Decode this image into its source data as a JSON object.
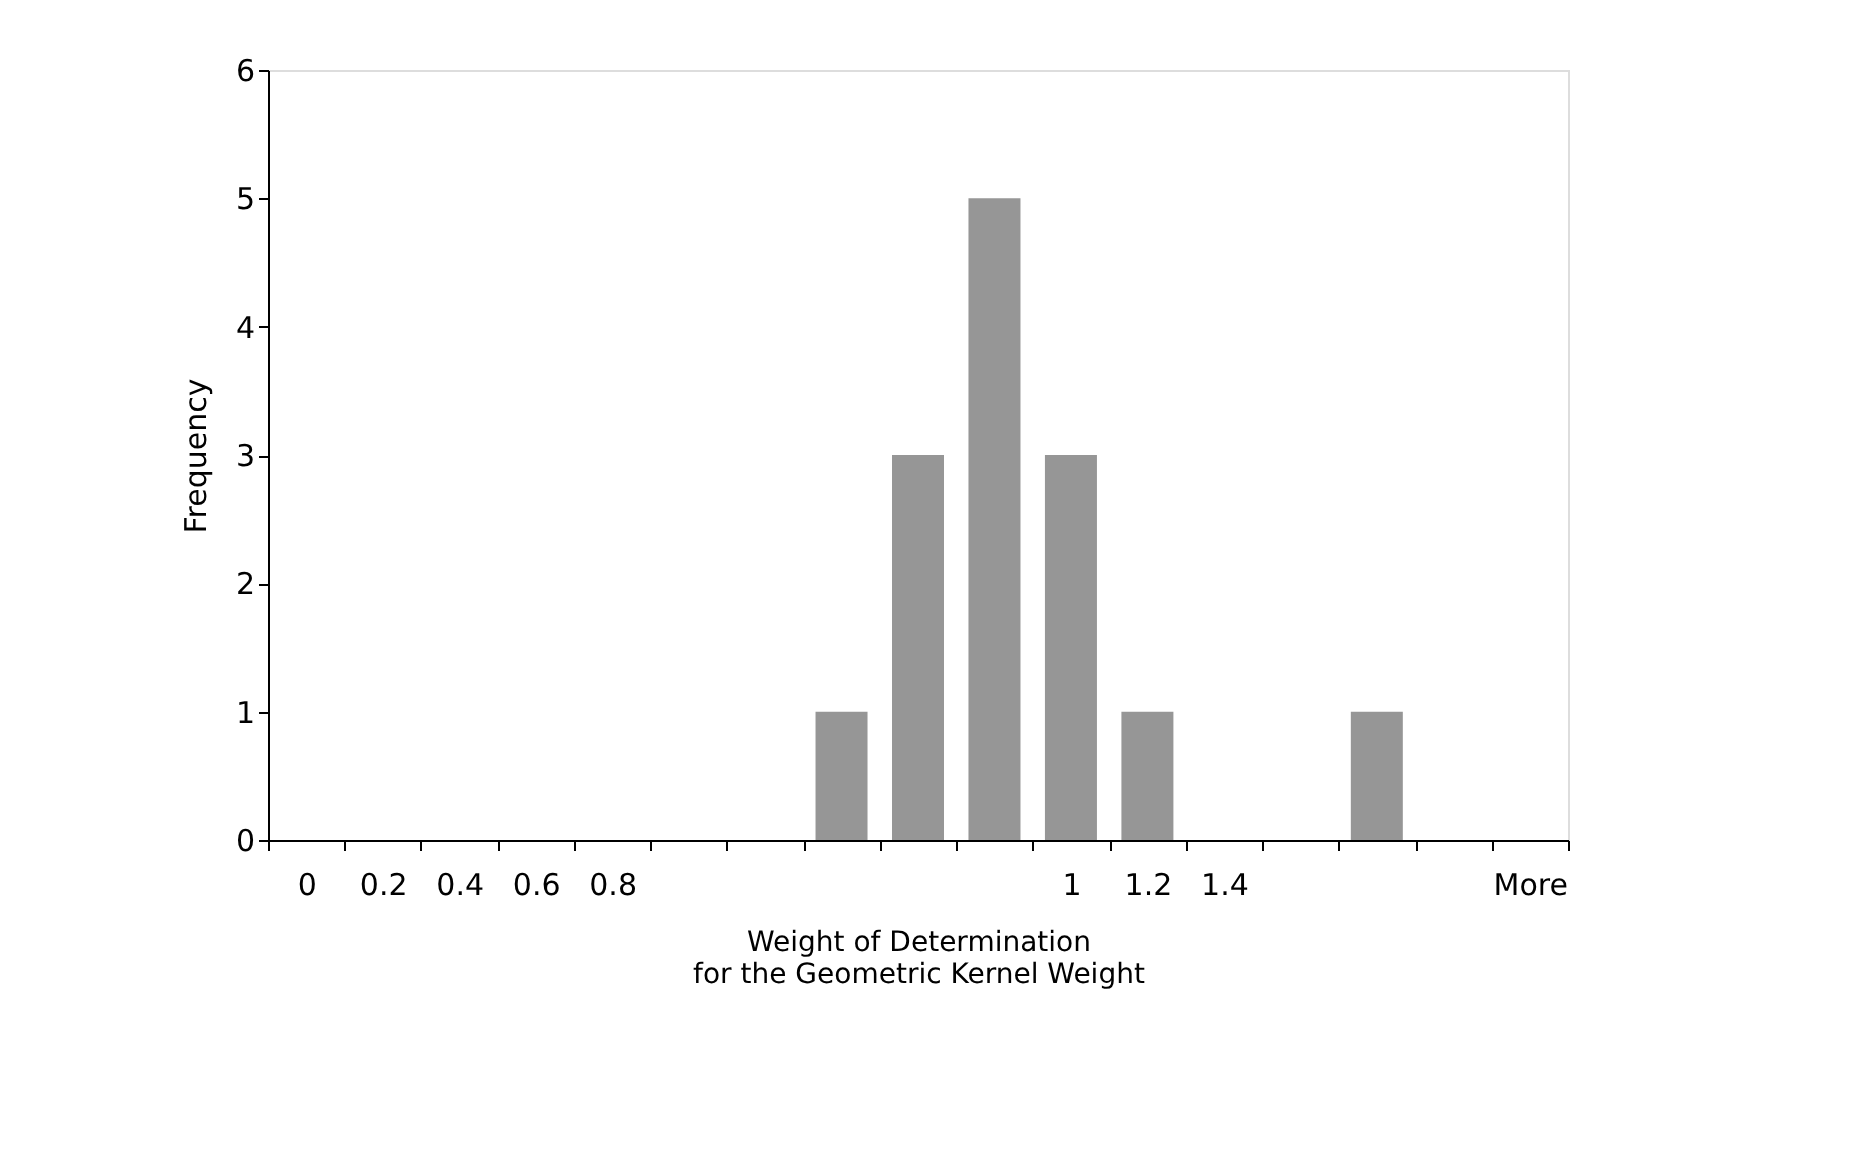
{
  "chart_data": {
    "type": "bar",
    "categories": [
      "0",
      "0.2",
      "0.4",
      "0.6",
      "0.8",
      null,
      null,
      null,
      null,
      null,
      "1",
      "1.2",
      "1.4",
      null,
      null,
      null,
      "More"
    ],
    "values": [
      0,
      0,
      0,
      0,
      0,
      0,
      0,
      1,
      3,
      5,
      3,
      1,
      0,
      0,
      1,
      0,
      0
    ],
    "color": "#969696",
    "xlabel": "Weight of Determination\nfor the Geometric Kernel Weight",
    "ylabel": "Frequency",
    "ylim": [
      0,
      6
    ],
    "yticks": [
      0,
      1,
      2,
      3,
      4,
      5,
      6
    ],
    "grid": false
  }
}
